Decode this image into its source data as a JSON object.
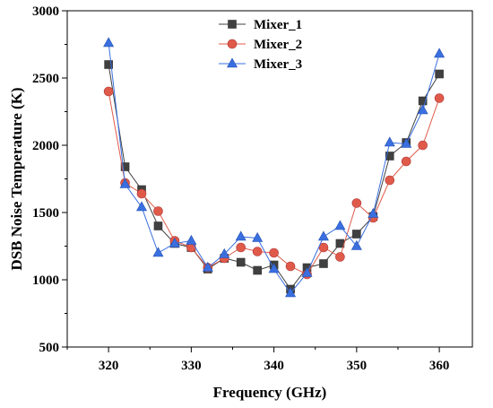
{
  "chart_data": {
    "type": "line",
    "xlabel": "Frequency (GHz)",
    "ylabel": "DSB Noise Temperature (K)",
    "xlim": [
      315,
      364
    ],
    "ylim": [
      500,
      3000
    ],
    "x_ticks": [
      320,
      330,
      340,
      350,
      360
    ],
    "y_ticks": [
      500,
      1000,
      1500,
      2000,
      2500,
      3000
    ],
    "x_tick_labels": [
      "320",
      "330",
      "340",
      "350",
      "360"
    ],
    "y_tick_labels": [
      "500",
      "1000",
      "1500",
      "2000",
      "2500",
      "3000"
    ],
    "legend_position": "top-center",
    "grid": false,
    "x": [
      320,
      322,
      324,
      326,
      328,
      330,
      332,
      334,
      336,
      338,
      340,
      342,
      344,
      346,
      348,
      350,
      352,
      354,
      356,
      358,
      360
    ],
    "series": [
      {
        "name": "Mixer_1",
        "color": "#404040",
        "marker": "square",
        "values": [
          2600,
          1840,
          1670,
          1400,
          1270,
          1240,
          1080,
          1160,
          1130,
          1070,
          1110,
          930,
          1090,
          1120,
          1270,
          1340,
          1470,
          1920,
          2020,
          2330,
          2530
        ]
      },
      {
        "name": "Mixer_2",
        "color": "#e05a4a",
        "marker": "circle",
        "values": [
          2400,
          1720,
          1640,
          1510,
          1290,
          1240,
          1090,
          1160,
          1240,
          1210,
          1200,
          1100,
          1040,
          1240,
          1170,
          1570,
          1460,
          1740,
          1880,
          2000,
          2350
        ]
      },
      {
        "name": "Mixer_3",
        "color": "#3a6fe0",
        "marker": "triangle",
        "values": [
          2760,
          1710,
          1540,
          1200,
          1270,
          1290,
          1090,
          1190,
          1320,
          1310,
          1080,
          900,
          1050,
          1320,
          1400,
          1250,
          1490,
          2020,
          2010,
          2260,
          2680
        ]
      }
    ]
  }
}
